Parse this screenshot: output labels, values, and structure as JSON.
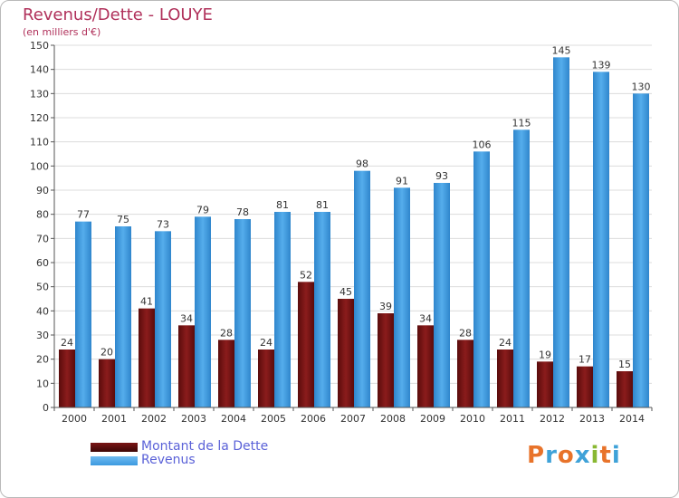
{
  "title": "Revenus/Dette - LOUYE",
  "subtitle": "(en milliers d'€)",
  "logo_text": "Proxiti",
  "chart_data": {
    "type": "bar",
    "categories": [
      "2000",
      "2001",
      "2002",
      "2003",
      "2004",
      "2005",
      "2006",
      "2007",
      "2008",
      "2009",
      "2010",
      "2011",
      "2012",
      "2013",
      "2014"
    ],
    "series": [
      {
        "name": "Montant de la Dette",
        "color": "#7a1515",
        "values": [
          24,
          20,
          41,
          34,
          28,
          24,
          52,
          45,
          39,
          34,
          28,
          24,
          19,
          17,
          15
        ]
      },
      {
        "name": "Revenus",
        "color": "#3d9ae0",
        "values": [
          77,
          75,
          73,
          79,
          78,
          81,
          81,
          98,
          91,
          93,
          106,
          115,
          145,
          139,
          130
        ]
      }
    ],
    "ylim": [
      0,
      150
    ],
    "yticks": [
      0,
      10,
      20,
      30,
      40,
      50,
      60,
      70,
      80,
      90,
      100,
      110,
      120,
      130,
      140,
      150
    ],
    "grid": true,
    "legend_position": "bottom-left"
  }
}
